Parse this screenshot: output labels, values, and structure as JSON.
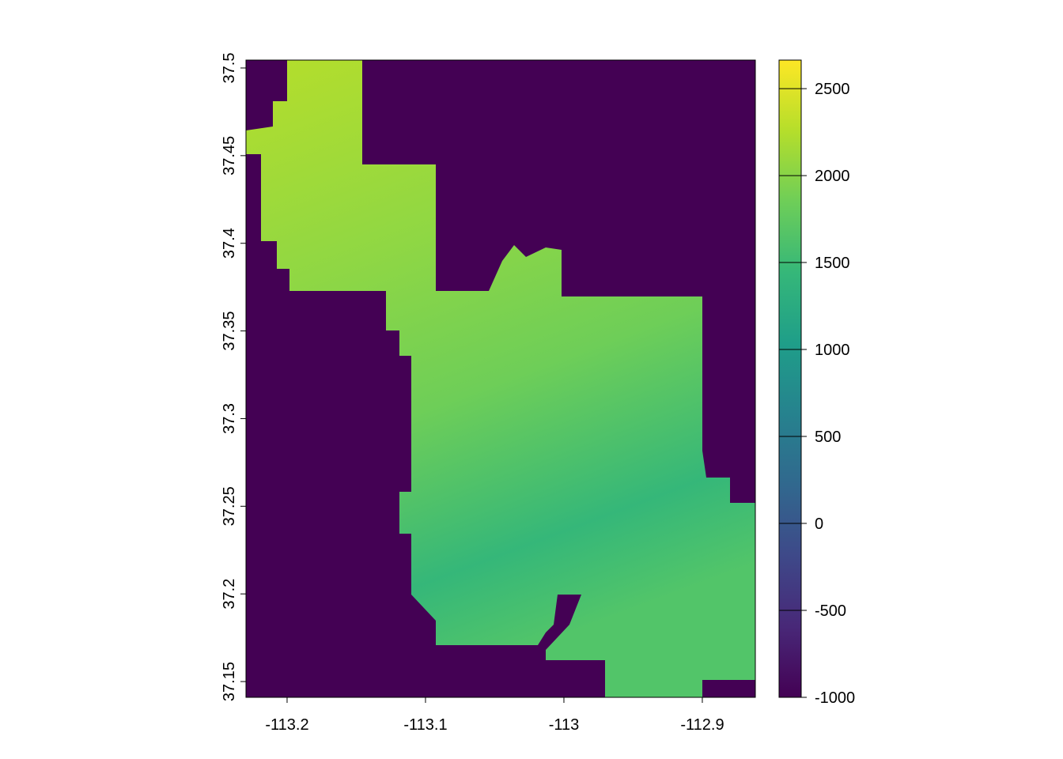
{
  "chart_data": {
    "type": "raster",
    "xlim": [
      -113.2297,
      -112.8617
    ],
    "xticks": [
      -113.2,
      -113.1,
      -113,
      -112.9
    ],
    "ylim": [
      37.141,
      37.5045
    ],
    "yticks": [
      37.15,
      37.2,
      37.25,
      37.3,
      37.35,
      37.4,
      37.45,
      37.5
    ],
    "colorbar": {
      "lim": [
        -1000,
        2664
      ],
      "ticks": [
        -1000,
        -500,
        0,
        500,
        1000,
        1500,
        2000,
        2500
      ],
      "colors": [
        "#440154",
        "#482878",
        "#3e4989",
        "#31688e",
        "#26828e",
        "#1f9e89",
        "#35b779",
        "#6ece58",
        "#b5de2b",
        "#fde725"
      ]
    }
  }
}
